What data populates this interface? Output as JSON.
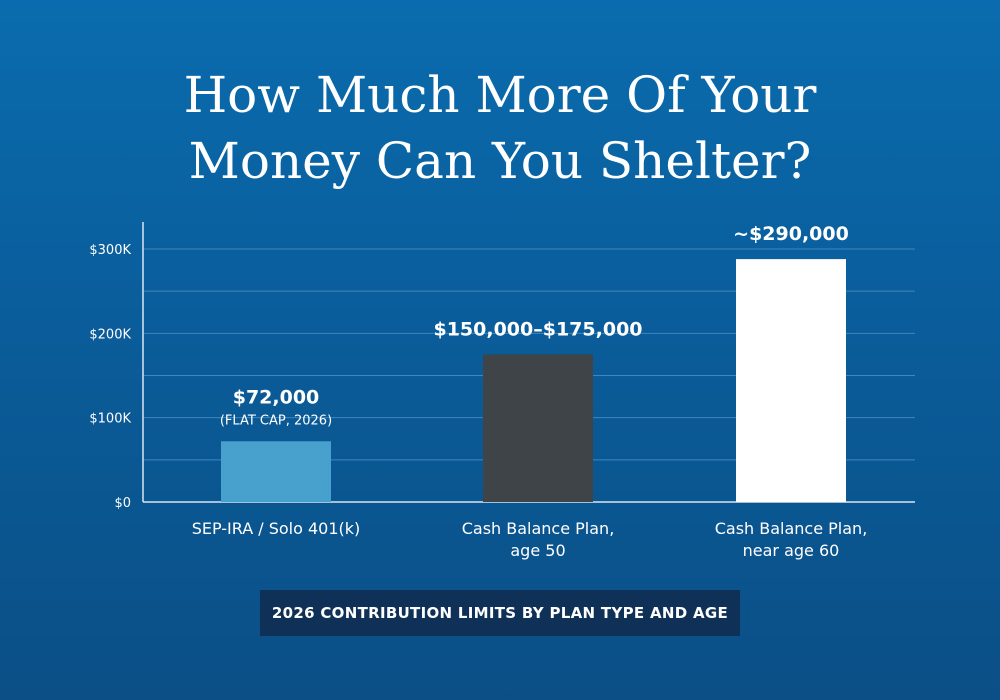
{
  "title_lines": [
    "How Much More Of Your",
    "Money Can You Shelter?"
  ],
  "caption": "2026 CONTRIBUTION LIMITS BY PLAN TYPE AND AGE",
  "colors": {
    "bar_sep": "#48a1cc",
    "bar_cash50": "#3f4448",
    "bar_cash60": "#ffffff",
    "grid": "#3f86bd",
    "axis": "#d9e6f2",
    "caption_bg": "#0f3157"
  },
  "chart_data": {
    "type": "bar",
    "categories": [
      [
        "SEP-IRA / Solo 401(k)"
      ],
      [
        "Cash Balance Plan,",
        "age 50"
      ],
      [
        "Cash Balance Plan,",
        "near age 60"
      ]
    ],
    "values": [
      72000,
      175000,
      288000
    ],
    "value_labels": [
      "$72,000",
      "$150,000–$175,000",
      "~$290,000"
    ],
    "value_notes": [
      "(FLAT CAP, 2026)",
      "",
      ""
    ],
    "ylim": [
      0,
      300000
    ],
    "yticks": [
      0,
      100000,
      200000,
      300000
    ],
    "ytick_labels": [
      "$0",
      "$100K",
      "$200K",
      "$300K"
    ],
    "gridlines_every": 50000,
    "grid": true,
    "xlabel": "",
    "ylabel": ""
  }
}
